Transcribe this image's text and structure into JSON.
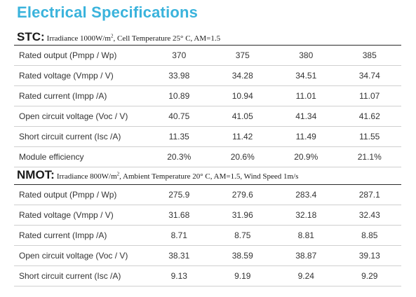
{
  "title": "Electrical Specifications",
  "stc": {
    "label": "STC:",
    "cond_pre": "Irradiance 1000W/m",
    "cond_sup": "2",
    "cond_post": ", Cell Temperature 25° C, AM=1.5",
    "rows": [
      {
        "name": "Rated output (Pmpp / Wp)",
        "values": [
          "370",
          "375",
          "380",
          "385"
        ]
      },
      {
        "name": "Rated voltage (Vmpp / V)",
        "values": [
          "33.98",
          "34.28",
          "34.51",
          "34.74"
        ]
      },
      {
        "name": "Rated current (Impp /A)",
        "values": [
          "10.89",
          "10.94",
          "11.01",
          "11.07"
        ]
      },
      {
        "name": "Open circuit voltage (Voc / V)",
        "values": [
          "40.75",
          "41.05",
          "41.34",
          "41.62"
        ]
      },
      {
        "name": "Short circuit current (Isc /A)",
        "values": [
          "11.35",
          "11.42",
          "11.49",
          "11.55"
        ]
      },
      {
        "name": "Module efficiency",
        "values": [
          "20.3%",
          "20.6%",
          "20.9%",
          "21.1%"
        ]
      }
    ]
  },
  "nmot": {
    "label": "NMOT:",
    "cond_pre": "Irradiance 800W/m",
    "cond_sup": "2",
    "cond_post": ", Ambient Temperature 20° C, AM=1.5, Wind Speed 1m/s",
    "rows": [
      {
        "name": "Rated output (Pmpp / Wp)",
        "values": [
          "275.9",
          "279.6",
          "283.4",
          "287.1"
        ]
      },
      {
        "name": "Rated voltage (Vmpp / V)",
        "values": [
          "31.68",
          "31.96",
          "32.18",
          "32.43"
        ]
      },
      {
        "name": "Rated current (Impp /A)",
        "values": [
          "8.71",
          "8.75",
          "8.81",
          "8.85"
        ]
      },
      {
        "name": "Open circuit voltage (Voc / V)",
        "values": [
          "38.31",
          "38.59",
          "38.87",
          "39.13"
        ]
      },
      {
        "name": "Short circuit current (Isc /A)",
        "values": [
          "9.13",
          "9.19",
          "9.24",
          "9.29"
        ]
      }
    ]
  }
}
